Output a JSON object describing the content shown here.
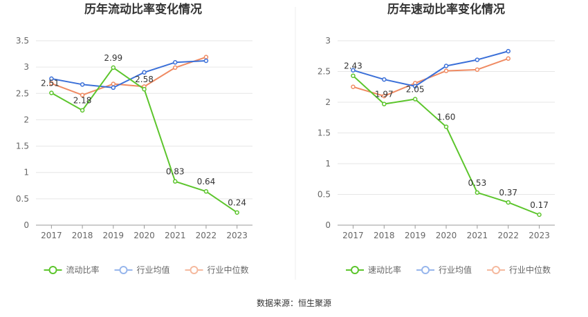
{
  "chart_data": [
    {
      "type": "line",
      "title": "历年流动比率变化情况",
      "categories": [
        "2017",
        "2018",
        "2019",
        "2020",
        "2021",
        "2022",
        "2023"
      ],
      "ylim": [
        0,
        3.5
      ],
      "yticks": [
        "0",
        "0.5",
        "1",
        "1.5",
        "2",
        "2.5",
        "3",
        "3.5"
      ],
      "grid": true,
      "legend_position": "bottom",
      "series": [
        {
          "name": "流动比率",
          "color": "#5cc52c",
          "values": [
            2.51,
            2.18,
            2.99,
            2.58,
            0.83,
            0.64,
            0.24
          ],
          "labels": [
            "2.51",
            "2.18",
            "2.99",
            "2.58",
            "0.83",
            "0.64",
            "0.24"
          ]
        },
        {
          "name": "行业均值",
          "color": "#3a6fd8",
          "values": [
            2.78,
            2.67,
            2.61,
            2.9,
            3.09,
            3.12,
            null
          ]
        },
        {
          "name": "行业中位数",
          "color": "#ef8a62",
          "values": [
            2.69,
            2.47,
            2.68,
            2.63,
            2.99,
            3.19,
            null
          ]
        }
      ]
    },
    {
      "type": "line",
      "title": "历年速动比率变化情况",
      "categories": [
        "2017",
        "2018",
        "2019",
        "2020",
        "2021",
        "2022",
        "2023"
      ],
      "ylim": [
        0,
        3
      ],
      "yticks": [
        "0",
        "0.5",
        "1",
        "1.5",
        "2",
        "2.5",
        "3"
      ],
      "grid": true,
      "legend_position": "bottom",
      "series": [
        {
          "name": "速动比率",
          "color": "#5cc52c",
          "values": [
            2.43,
            1.97,
            2.05,
            1.6,
            0.53,
            0.37,
            0.17
          ],
          "labels": [
            "2.43",
            "1.97",
            "2.05",
            "1.60",
            "0.53",
            "0.37",
            "0.17"
          ]
        },
        {
          "name": "行业均值",
          "color": "#3a6fd8",
          "values": [
            2.52,
            2.37,
            2.26,
            2.59,
            2.69,
            2.83,
            null
          ]
        },
        {
          "name": "行业中位数",
          "color": "#ef8a62",
          "values": [
            2.25,
            2.1,
            2.31,
            2.51,
            2.53,
            2.71,
            null
          ]
        }
      ]
    }
  ],
  "footer": {
    "source": "数据来源：恒生聚源"
  }
}
